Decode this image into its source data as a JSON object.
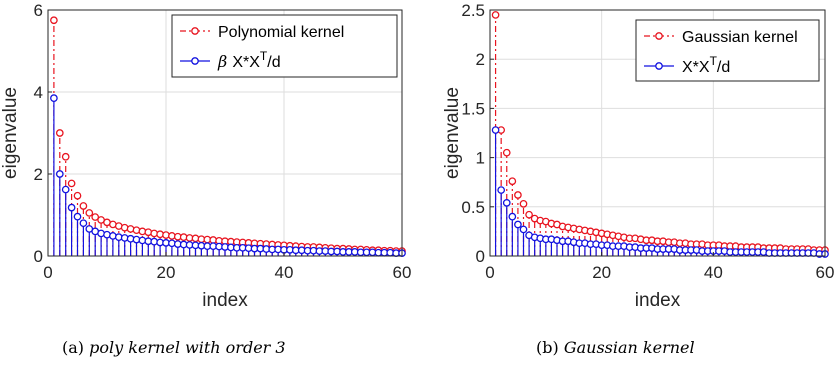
{
  "captions": [
    {
      "tag": "(a)",
      "text": "poly kernel with order 3"
    },
    {
      "tag": "(b)",
      "text": "Gaussian kernel"
    }
  ],
  "chart_data": [
    {
      "type": "stem",
      "xlabel": "index",
      "ylabel": "eigenvalue",
      "xlim": [
        0,
        60
      ],
      "ylim": [
        0,
        6
      ],
      "xticks": [
        0,
        20,
        40,
        60
      ],
      "yticks": [
        0,
        2,
        4,
        6
      ],
      "grid": true,
      "legend": "top-right",
      "x": [
        1,
        2,
        3,
        4,
        5,
        6,
        7,
        8,
        9,
        10,
        11,
        12,
        13,
        14,
        15,
        16,
        17,
        18,
        19,
        20,
        21,
        22,
        23,
        24,
        25,
        26,
        27,
        28,
        29,
        30,
        31,
        32,
        33,
        34,
        35,
        36,
        37,
        38,
        39,
        40,
        41,
        42,
        43,
        44,
        45,
        46,
        47,
        48,
        49,
        50,
        51,
        52,
        53,
        54,
        55,
        56,
        57,
        58,
        59,
        60
      ],
      "series": [
        {
          "name": "Polynomial kernel",
          "color": "#e8141f",
          "line_style": "dash-dot",
          "values": [
            5.75,
            3.0,
            2.42,
            1.77,
            1.47,
            1.22,
            1.05,
            0.95,
            0.88,
            0.82,
            0.77,
            0.73,
            0.69,
            0.66,
            0.63,
            0.6,
            0.58,
            0.55,
            0.53,
            0.51,
            0.49,
            0.47,
            0.46,
            0.44,
            0.43,
            0.41,
            0.4,
            0.39,
            0.37,
            0.36,
            0.35,
            0.34,
            0.33,
            0.32,
            0.31,
            0.3,
            0.29,
            0.28,
            0.27,
            0.26,
            0.25,
            0.24,
            0.23,
            0.22,
            0.22,
            0.21,
            0.2,
            0.19,
            0.18,
            0.18,
            0.17,
            0.16,
            0.16,
            0.15,
            0.14,
            0.14,
            0.13,
            0.13,
            0.12,
            0.12
          ]
        },
        {
          "name": "β X*X^T/d",
          "name_parts": {
            "beta": "β",
            "base": "X*X",
            "sup": "T",
            "tail": "/d"
          },
          "color": "#1212e0",
          "line_style": "solid",
          "values": [
            3.85,
            2.0,
            1.62,
            1.18,
            0.96,
            0.8,
            0.66,
            0.6,
            0.55,
            0.52,
            0.49,
            0.46,
            0.44,
            0.42,
            0.4,
            0.38,
            0.36,
            0.35,
            0.33,
            0.32,
            0.31,
            0.29,
            0.28,
            0.27,
            0.26,
            0.25,
            0.24,
            0.24,
            0.23,
            0.22,
            0.21,
            0.2,
            0.2,
            0.19,
            0.18,
            0.18,
            0.17,
            0.16,
            0.16,
            0.15,
            0.15,
            0.14,
            0.14,
            0.13,
            0.13,
            0.12,
            0.12,
            0.11,
            0.11,
            0.1,
            0.1,
            0.1,
            0.09,
            0.09,
            0.09,
            0.08,
            0.08,
            0.08,
            0.07,
            0.07
          ]
        }
      ]
    },
    {
      "type": "stem",
      "xlabel": "index",
      "ylabel": "eigenvalue",
      "xlim": [
        0,
        60
      ],
      "ylim": [
        0,
        2.5
      ],
      "xticks": [
        0,
        20,
        40,
        60
      ],
      "yticks": [
        0,
        0.5,
        1,
        1.5,
        2,
        2.5
      ],
      "grid": true,
      "legend": "top-right",
      "x": [
        1,
        2,
        3,
        4,
        5,
        6,
        7,
        8,
        9,
        10,
        11,
        12,
        13,
        14,
        15,
        16,
        17,
        18,
        19,
        20,
        21,
        22,
        23,
        24,
        25,
        26,
        27,
        28,
        29,
        30,
        31,
        32,
        33,
        34,
        35,
        36,
        37,
        38,
        39,
        40,
        41,
        42,
        43,
        44,
        45,
        46,
        47,
        48,
        49,
        50,
        51,
        52,
        53,
        54,
        55,
        56,
        57,
        58,
        59,
        60
      ],
      "series": [
        {
          "name": "Gaussian kernel",
          "color": "#e8141f",
          "line_style": "dash-dot",
          "values": [
            2.45,
            1.28,
            1.05,
            0.76,
            0.62,
            0.53,
            0.42,
            0.38,
            0.36,
            0.35,
            0.33,
            0.32,
            0.3,
            0.29,
            0.28,
            0.27,
            0.26,
            0.25,
            0.24,
            0.23,
            0.22,
            0.21,
            0.2,
            0.19,
            0.18,
            0.18,
            0.17,
            0.16,
            0.16,
            0.15,
            0.15,
            0.14,
            0.14,
            0.13,
            0.13,
            0.12,
            0.12,
            0.12,
            0.11,
            0.11,
            0.11,
            0.1,
            0.1,
            0.1,
            0.09,
            0.09,
            0.09,
            0.09,
            0.08,
            0.08,
            0.08,
            0.08,
            0.07,
            0.07,
            0.07,
            0.07,
            0.07,
            0.06,
            0.06,
            0.06
          ]
        },
        {
          "name": "X*X^T/d",
          "name_parts": {
            "beta": "",
            "base": "X*X",
            "sup": "T",
            "tail": "/d"
          },
          "color": "#1212e0",
          "line_style": "solid",
          "values": [
            1.28,
            0.67,
            0.54,
            0.4,
            0.32,
            0.27,
            0.21,
            0.19,
            0.18,
            0.17,
            0.17,
            0.16,
            0.15,
            0.15,
            0.14,
            0.13,
            0.13,
            0.12,
            0.12,
            0.11,
            0.11,
            0.1,
            0.1,
            0.1,
            0.09,
            0.09,
            0.08,
            0.08,
            0.08,
            0.07,
            0.07,
            0.07,
            0.07,
            0.06,
            0.06,
            0.06,
            0.06,
            0.05,
            0.05,
            0.05,
            0.05,
            0.05,
            0.04,
            0.04,
            0.04,
            0.04,
            0.04,
            0.04,
            0.04,
            0.03,
            0.03,
            0.03,
            0.03,
            0.03,
            0.03,
            0.03,
            0.03,
            0.03,
            0.02,
            0.02
          ]
        }
      ]
    }
  ]
}
